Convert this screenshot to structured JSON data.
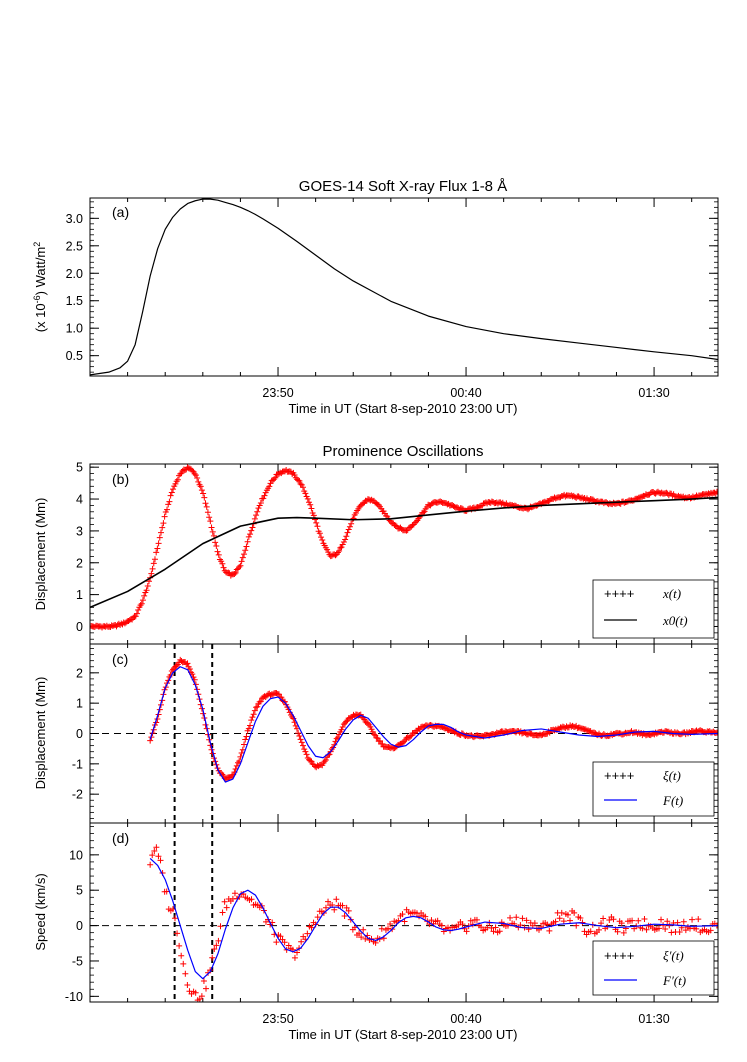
{
  "chart_data": [
    {
      "id": "a",
      "type": "line",
      "panel_label": "(a)",
      "title": "GOES-14 Soft X-ray Flux 1-8 Å",
      "ylabel_prefix": "(x 10",
      "ylabel_exp1": "-6",
      "ylabel_mid": ") Watt/m",
      "ylabel_exp2": "2",
      "xlabel": "Time in UT (Start 8-sep-2010 23:00 UT)",
      "xlim": [
        0,
        167
      ],
      "ylim": [
        0.13,
        3.37
      ],
      "xticks": [
        {
          "value": 50,
          "label": "23:50"
        },
        {
          "value": 100,
          "label": "00:40"
        },
        {
          "value": 150,
          "label": "01:30"
        }
      ],
      "yticks": [
        {
          "value": 0.5,
          "label": "0.5"
        },
        {
          "value": 1.0,
          "label": "1.0"
        },
        {
          "value": 1.5,
          "label": "1.5"
        },
        {
          "value": 2.0,
          "label": "2.0"
        },
        {
          "value": 2.5,
          "label": "2.5"
        },
        {
          "value": 3.0,
          "label": "3.0"
        }
      ],
      "series": [
        {
          "name": "flux",
          "color": "#000000",
          "x": [
            0,
            5,
            8,
            10,
            12,
            14,
            16,
            18,
            20,
            22,
            24,
            26,
            28,
            30,
            32,
            34,
            36,
            38,
            40,
            42,
            44,
            46,
            50,
            55,
            60,
            65,
            70,
            80,
            90,
            100,
            110,
            120,
            130,
            140,
            150,
            160,
            167
          ],
          "y": [
            0.15,
            0.2,
            0.28,
            0.4,
            0.7,
            1.3,
            1.95,
            2.45,
            2.8,
            3.02,
            3.17,
            3.27,
            3.32,
            3.35,
            3.35,
            3.33,
            3.29,
            3.25,
            3.2,
            3.14,
            3.07,
            2.99,
            2.82,
            2.58,
            2.33,
            2.08,
            1.86,
            1.49,
            1.22,
            1.03,
            0.9,
            0.81,
            0.73,
            0.65,
            0.57,
            0.5,
            0.43
          ]
        }
      ]
    },
    {
      "id": "b",
      "type": "line",
      "panel_label": "(b)",
      "title": "Prominence Oscillations",
      "ylabel": "Displacement (Mm)",
      "xlim": [
        0,
        167
      ],
      "ylim": [
        -0.55,
        5.1
      ],
      "yticks": [
        {
          "value": 0,
          "label": "0"
        },
        {
          "value": 1,
          "label": "1"
        },
        {
          "value": 2,
          "label": "2"
        },
        {
          "value": 3,
          "label": "3"
        },
        {
          "value": 4,
          "label": "4"
        },
        {
          "value": 5,
          "label": "5"
        }
      ],
      "series": [
        {
          "name": "x(t)",
          "style": "plus",
          "color": "#ff0000",
          "x": [
            0,
            3,
            6,
            9,
            12,
            14,
            16,
            18,
            20,
            22,
            24,
            26,
            28,
            30,
            32,
            34,
            36,
            38,
            40,
            42,
            45,
            48,
            50,
            52,
            54,
            56,
            58,
            60,
            62,
            64,
            66,
            68,
            70,
            72,
            74,
            76,
            78,
            80,
            82,
            84,
            86,
            88,
            90,
            92,
            94,
            96,
            98,
            100,
            102,
            104,
            106,
            108,
            110,
            112,
            114,
            116,
            118,
            120,
            122,
            124,
            126,
            128,
            130,
            132,
            134,
            136,
            138,
            140,
            142,
            144,
            146,
            148,
            150,
            152,
            154,
            156,
            158,
            160,
            162,
            164,
            167
          ],
          "y": [
            0,
            0,
            0,
            0.1,
            0.3,
            0.8,
            1.5,
            2.5,
            3.5,
            4.3,
            4.8,
            5.0,
            4.8,
            4.2,
            3.3,
            2.3,
            1.7,
            1.6,
            1.9,
            2.7,
            3.8,
            4.5,
            4.8,
            4.9,
            4.8,
            4.5,
            4.0,
            3.3,
            2.6,
            2.2,
            2.3,
            2.8,
            3.4,
            3.8,
            4.0,
            3.9,
            3.6,
            3.3,
            3.1,
            3.0,
            3.2,
            3.5,
            3.8,
            3.9,
            3.9,
            3.8,
            3.7,
            3.65,
            3.7,
            3.8,
            3.9,
            3.9,
            3.85,
            3.8,
            3.75,
            3.7,
            3.75,
            3.85,
            3.95,
            4.05,
            4.1,
            4.1,
            4.05,
            4.0,
            3.95,
            3.9,
            3.85,
            3.85,
            3.9,
            3.95,
            4.05,
            4.15,
            4.2,
            4.2,
            4.15,
            4.1,
            4.05,
            4.05,
            4.1,
            4.15,
            4.2
          ]
        },
        {
          "name": "x0(t)",
          "style": "line",
          "color": "#000000",
          "x": [
            0,
            10,
            20,
            30,
            40,
            50,
            55,
            60,
            70,
            80,
            90,
            100,
            110,
            120,
            130,
            140,
            150,
            160,
            167
          ],
          "y": [
            0.6,
            1.1,
            1.8,
            2.6,
            3.15,
            3.4,
            3.42,
            3.4,
            3.35,
            3.38,
            3.5,
            3.62,
            3.72,
            3.8,
            3.85,
            3.9,
            3.95,
            4.0,
            4.05
          ]
        }
      ],
      "legend": {
        "position": "bottom-right",
        "entries": [
          "x(t)",
          "x0(t)"
        ]
      }
    },
    {
      "id": "c",
      "type": "line",
      "panel_label": "(c)",
      "ylabel": "Displacement (Mm)",
      "xlim": [
        0,
        167
      ],
      "ylim": [
        -2.95,
        2.95
      ],
      "yticks": [
        {
          "value": -2,
          "label": "-2"
        },
        {
          "value": -1,
          "label": "-1"
        },
        {
          "value": 0,
          "label": "0"
        },
        {
          "value": 1,
          "label": "1"
        },
        {
          "value": 2,
          "label": "2"
        }
      ],
      "series": [
        {
          "name": "ξ(t)",
          "style": "plus",
          "color": "#ff0000",
          "x": [
            16,
            18,
            20,
            22,
            24,
            26,
            28,
            30,
            32,
            34,
            36,
            38,
            40,
            42,
            44,
            46,
            48,
            50,
            52,
            54,
            56,
            58,
            60,
            62,
            64,
            66,
            68,
            70,
            72,
            74,
            76,
            78,
            80,
            82,
            84,
            86,
            88,
            90,
            92,
            94,
            96,
            98,
            100,
            102,
            104,
            106,
            108,
            110,
            112,
            114,
            116,
            118,
            120,
            122,
            124,
            126,
            128,
            130,
            132,
            134,
            136,
            138,
            140,
            142,
            144,
            146,
            148,
            150,
            152,
            154,
            156,
            158,
            160,
            162,
            164,
            167
          ],
          "y": [
            -0.2,
            0.5,
            1.5,
            2.1,
            2.4,
            2.3,
            1.7,
            0.7,
            -0.4,
            -1.2,
            -1.5,
            -1.4,
            -0.8,
            0.1,
            0.8,
            1.2,
            1.3,
            1.3,
            1.0,
            0.5,
            -0.2,
            -0.8,
            -1.1,
            -1.0,
            -0.6,
            -0.1,
            0.4,
            0.6,
            0.6,
            0.3,
            -0.1,
            -0.4,
            -0.5,
            -0.4,
            -0.2,
            0.0,
            0.2,
            0.25,
            0.25,
            0.2,
            0.1,
            0.0,
            -0.05,
            -0.1,
            -0.1,
            -0.05,
            0.0,
            0.05,
            0.05,
            0.05,
            0.0,
            -0.05,
            -0.05,
            0.05,
            0.15,
            0.2,
            0.25,
            0.2,
            0.1,
            0.0,
            -0.05,
            -0.05,
            0.0,
            0.0,
            0.05,
            0.0,
            -0.05,
            0.0,
            0.05,
            0.05,
            0.0,
            0.0,
            0.05,
            0.1,
            0.05,
            0.05
          ]
        },
        {
          "name": "F(t)",
          "style": "line",
          "color": "#0000ff",
          "x": [
            16,
            18,
            20,
            22,
            24,
            26,
            28,
            30,
            32,
            34,
            36,
            38,
            40,
            42,
            44,
            46,
            48,
            50,
            52,
            54,
            56,
            58,
            60,
            62,
            64,
            66,
            68,
            70,
            72,
            74,
            76,
            78,
            80,
            82,
            84,
            86,
            88,
            90,
            92,
            94,
            96,
            98,
            100,
            105,
            110,
            115,
            120,
            125,
            130,
            135,
            140,
            145,
            150,
            155,
            160,
            167
          ],
          "y": [
            -0.2,
            0.6,
            1.5,
            2.0,
            2.2,
            2.1,
            1.6,
            0.8,
            -0.3,
            -1.2,
            -1.6,
            -1.5,
            -1.0,
            -0.3,
            0.4,
            0.9,
            1.15,
            1.2,
            1.0,
            0.6,
            0.1,
            -0.4,
            -0.75,
            -0.8,
            -0.6,
            -0.25,
            0.15,
            0.45,
            0.6,
            0.5,
            0.2,
            -0.1,
            -0.35,
            -0.45,
            -0.4,
            -0.2,
            0.05,
            0.25,
            0.3,
            0.3,
            0.2,
            0.05,
            -0.05,
            -0.15,
            -0.05,
            0.1,
            0.15,
            0.05,
            -0.05,
            -0.1,
            -0.05,
            0.05,
            0.07,
            0.0,
            -0.03,
            0.0
          ]
        }
      ],
      "vlines_x": [
        22.5,
        32.5
      ],
      "hline_y": 0,
      "legend": {
        "position": "bottom-right",
        "entries": [
          "ξ(t)",
          "F(t)"
        ]
      }
    },
    {
      "id": "d",
      "type": "line",
      "panel_label": "(d)",
      "ylabel": "Speed (km/s)",
      "xlabel": "Time in UT (Start 8-sep-2010 23:00 UT)",
      "xlim": [
        0,
        167
      ],
      "ylim": [
        -10.8,
        14.5
      ],
      "xticks": [
        {
          "value": 50,
          "label": "23:50"
        },
        {
          "value": 100,
          "label": "00:40"
        },
        {
          "value": 150,
          "label": "01:30"
        }
      ],
      "yticks": [
        {
          "value": -10,
          "label": "-10"
        },
        {
          "value": -5,
          "label": "-5"
        },
        {
          "value": 0,
          "label": "0"
        },
        {
          "value": 5,
          "label": "5"
        },
        {
          "value": 10,
          "label": "10"
        }
      ],
      "series": [
        {
          "name": "ξ′(t)",
          "style": "plus",
          "color": "#ff0000",
          "x": [
            16,
            17,
            18,
            19,
            20,
            21,
            22,
            23,
            24,
            25,
            26,
            27,
            28,
            29,
            30,
            31,
            32,
            33,
            34,
            35,
            36,
            38,
            40,
            42,
            44,
            46,
            48,
            50,
            52,
            54,
            56,
            58,
            60,
            62,
            64,
            66,
            68,
            70,
            72,
            74,
            76,
            78,
            80,
            82,
            84,
            86,
            88,
            90,
            92,
            94,
            96,
            98,
            100,
            102,
            104,
            106,
            108,
            110,
            112,
            114,
            116,
            118,
            120,
            122,
            124,
            126,
            128,
            130,
            132,
            134,
            136,
            138,
            140,
            142,
            144,
            146,
            148,
            150,
            152,
            154,
            156,
            158,
            160,
            162,
            164,
            167
          ],
          "y": [
            9,
            11,
            10,
            8,
            5,
            3,
            2,
            0,
            -3,
            -6,
            -8,
            -9,
            -10,
            -10,
            -9,
            -8,
            -6,
            -4,
            -2,
            1,
            3,
            4,
            5,
            4,
            3,
            2,
            0,
            -2,
            -3,
            -4,
            -3,
            -1,
            1,
            2,
            3,
            3,
            2,
            0,
            -1,
            -2,
            -2,
            -1,
            0,
            1,
            1.5,
            1.5,
            1,
            0.5,
            0,
            -0.5,
            -1,
            -0.5,
            0,
            0.5,
            0,
            -0.5,
            -0.5,
            0,
            0.5,
            0.5,
            0.5,
            0,
            -0.5,
            0,
            1,
            1.5,
            1.5,
            0.5,
            -0.5,
            -0.5,
            0,
            0.5,
            0,
            -0.5,
            0,
            0.5,
            0,
            0,
            0.5,
            0,
            -0.5,
            0,
            0.5,
            0,
            -0.5,
            0
          ]
        },
        {
          "name": "F′(t)",
          "style": "line",
          "color": "#0000ff",
          "x": [
            16,
            18,
            20,
            22,
            24,
            26,
            28,
            30,
            32,
            34,
            36,
            38,
            40,
            42,
            44,
            46,
            48,
            50,
            52,
            54,
            56,
            58,
            60,
            62,
            64,
            66,
            68,
            70,
            72,
            74,
            76,
            78,
            80,
            82,
            84,
            86,
            88,
            90,
            92,
            94,
            96,
            98,
            100,
            105,
            110,
            115,
            120,
            125,
            130,
            135,
            140,
            145,
            150,
            155,
            160,
            167
          ],
          "y": [
            9.5,
            8.5,
            6.5,
            3.5,
            0,
            -3.5,
            -6.5,
            -7.5,
            -6.5,
            -4,
            -0.5,
            2.5,
            4.5,
            5,
            4.3,
            2.5,
            0.3,
            -1.8,
            -3.3,
            -3.7,
            -3.2,
            -1.8,
            0,
            1.7,
            2.6,
            2.6,
            1.8,
            0.5,
            -0.8,
            -1.8,
            -2.1,
            -1.6,
            -0.7,
            0.4,
            1.1,
            1.3,
            1.1,
            0.5,
            -0.2,
            -0.6,
            -0.7,
            -0.5,
            -0.2,
            0.5,
            0.3,
            -0.3,
            -0.4,
            0.2,
            0.4,
            0,
            -0.3,
            -0.1,
            0.2,
            0.1,
            -0.1,
            0
          ]
        }
      ],
      "vlines_x": [
        22.5,
        32.5
      ],
      "hline_y": 0,
      "legend": {
        "position": "bottom-right",
        "entries": [
          "ξ′(t)",
          "F′(t)"
        ]
      }
    }
  ]
}
